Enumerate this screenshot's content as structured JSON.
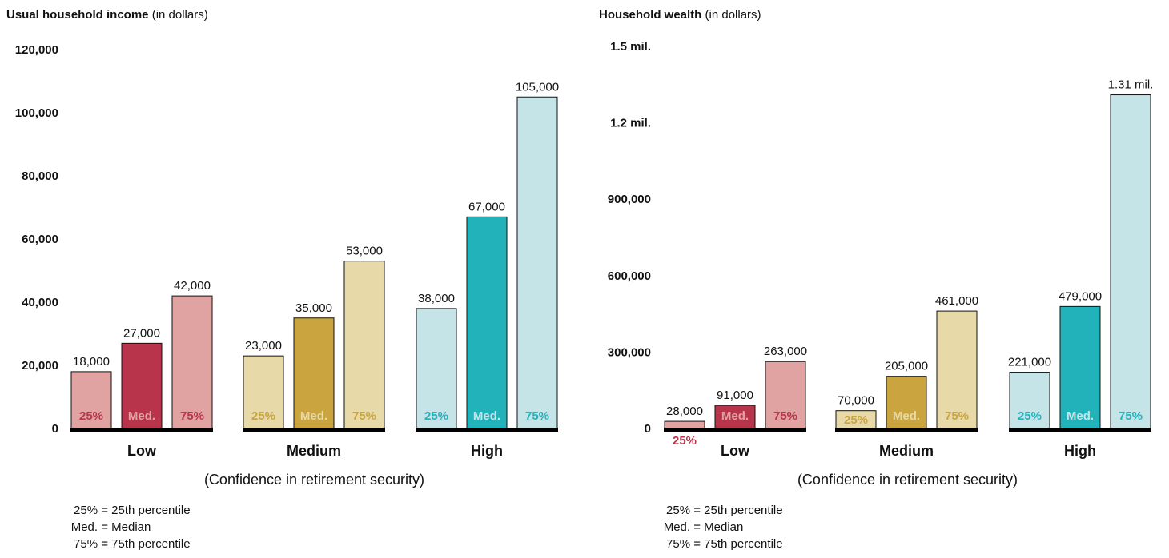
{
  "legend": [
    {
      "key": "25% =",
      "text": "25th percentile"
    },
    {
      "key": "Med. =",
      "text": "Median"
    },
    {
      "key": "75% =",
      "text": "75th percentile"
    }
  ],
  "bar_labels": [
    "25%",
    "Med.",
    "75%"
  ],
  "colors": {
    "low": [
      "#e0a3a2",
      "#b7344a",
      "#e0a3a2"
    ],
    "medium": [
      "#e8d9a8",
      "#c9a43f",
      "#e8d9a8"
    ],
    "high": [
      "#c5e4e8",
      "#22b3ba",
      "#c5e4e8"
    ],
    "low_text": [
      "#b7344a",
      "#e0a3a2",
      "#b7344a"
    ],
    "medium_text": [
      "#c9a43f",
      "#e8d9a8",
      "#c9a43f"
    ],
    "high_text": [
      "#22b3ba",
      "#c5e4e8",
      "#22b3ba"
    ]
  },
  "chart_data": [
    {
      "type": "bar",
      "title": "Usual household income",
      "title_unit": "(in dollars)",
      "xlabel": "(Confidence in retirement security)",
      "categories": [
        "Low",
        "Medium",
        "High"
      ],
      "series": [
        {
          "name": "25%",
          "values": [
            18000,
            23000,
            38000
          ]
        },
        {
          "name": "Med.",
          "values": [
            27000,
            35000,
            67000
          ]
        },
        {
          "name": "75%",
          "values": [
            42000,
            53000,
            105000
          ]
        }
      ],
      "value_labels": [
        [
          "18,000",
          "27,000",
          "42,000"
        ],
        [
          "23,000",
          "35,000",
          "53,000"
        ],
        [
          "38,000",
          "67,000",
          "105,000"
        ]
      ],
      "yticks": [
        0,
        20000,
        40000,
        60000,
        80000,
        100000,
        120000
      ],
      "ytick_labels": [
        "0",
        "20,000",
        "40,000",
        "60,000",
        "80,000",
        "100,000",
        "120,000"
      ],
      "ylim": [
        0,
        120000
      ]
    },
    {
      "type": "bar",
      "title": "Household wealth",
      "title_unit": "(in dollars)",
      "xlabel": "(Confidence in retirement security)",
      "categories": [
        "Low",
        "Medium",
        "High"
      ],
      "series": [
        {
          "name": "25%",
          "values": [
            28000,
            70000,
            221000
          ]
        },
        {
          "name": "Med.",
          "values": [
            91000,
            205000,
            479000
          ]
        },
        {
          "name": "75%",
          "values": [
            263000,
            461000,
            1310000
          ]
        }
      ],
      "value_labels": [
        [
          "28,000",
          "91,000",
          "263,000"
        ],
        [
          "70,000",
          "205,000",
          "461,000"
        ],
        [
          "221,000",
          "479,000",
          "1.31 mil."
        ]
      ],
      "yticks": [
        0,
        300000,
        600000,
        900000,
        1200000,
        1500000
      ],
      "ytick_labels": [
        "0",
        "300,000",
        "600,000",
        "900,000",
        "1.2 mil.",
        "1.5 mil."
      ],
      "ylim": [
        0,
        1500000
      ]
    }
  ]
}
